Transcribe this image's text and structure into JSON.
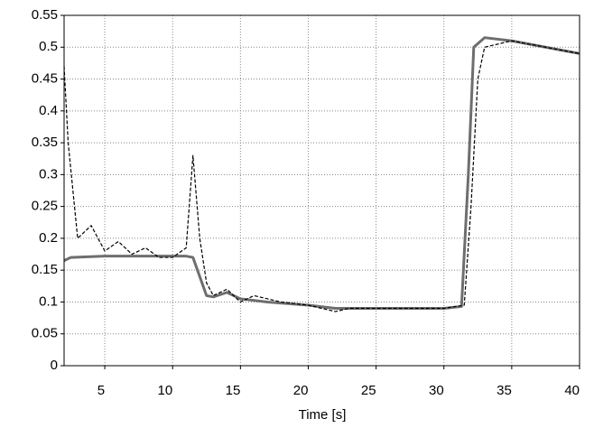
{
  "chart_data": {
    "type": "line",
    "x_label": "Time [s]",
    "xlim": [
      2,
      40
    ],
    "xticks": [
      5,
      10,
      15,
      20,
      25,
      30,
      35,
      40
    ],
    "ylim": [
      0,
      0.55
    ],
    "yticks": [
      0,
      0.05,
      0.1,
      0.15,
      0.2,
      0.25,
      0.3,
      0.35,
      0.4,
      0.45,
      0.5,
      0.55
    ],
    "grid": true,
    "series": [
      {
        "color": "#6e6e6e",
        "style": "solid",
        "x": [
          2,
          2.5,
          5,
          8,
          11,
          11.5,
          12,
          12.5,
          13,
          14,
          15,
          17,
          20,
          22,
          25,
          30,
          31.3,
          31.8,
          32.2,
          33,
          35,
          40
        ],
        "values": [
          0.165,
          0.17,
          0.172,
          0.172,
          0.172,
          0.17,
          0.14,
          0.11,
          0.108,
          0.115,
          0.105,
          0.1,
          0.095,
          0.09,
          0.09,
          0.09,
          0.093,
          0.3,
          0.5,
          0.515,
          0.51,
          0.49
        ]
      },
      {
        "color": "#000000",
        "style": "dashed",
        "x": [
          2,
          2.3,
          3,
          4,
          5,
          6,
          7,
          8,
          9,
          10,
          11,
          11.5,
          12,
          12.5,
          13,
          14,
          15,
          16,
          18,
          20,
          22,
          23,
          25,
          30,
          31.5,
          32,
          32.5,
          33,
          35,
          40
        ],
        "values": [
          0.47,
          0.35,
          0.2,
          0.22,
          0.18,
          0.195,
          0.175,
          0.185,
          0.17,
          0.17,
          0.185,
          0.33,
          0.2,
          0.13,
          0.11,
          0.12,
          0.1,
          0.11,
          0.1,
          0.095,
          0.085,
          0.09,
          0.09,
          0.09,
          0.095,
          0.25,
          0.45,
          0.5,
          0.51,
          0.49
        ]
      }
    ]
  }
}
